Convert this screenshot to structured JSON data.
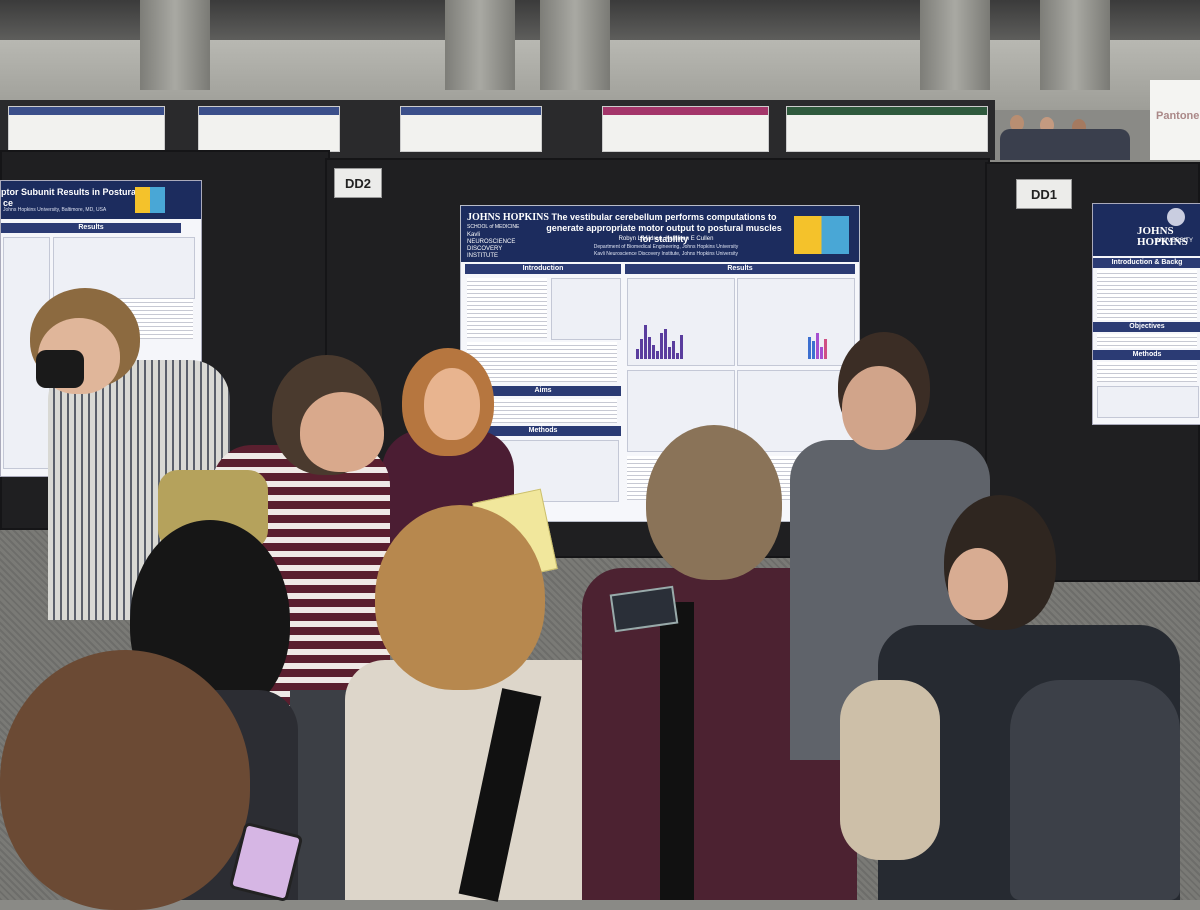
{
  "scene": {
    "board_labels": {
      "left": "DD2",
      "right": "DD1"
    },
    "background_banner_fragment": "Pantone"
  },
  "main_poster": {
    "institution": "JOHNS HOPKINS",
    "institution_sub": "SCHOOL of MEDICINE",
    "title": "The vestibular cerebellum performs computations to generate appropriate motor output to postural muscles for stability",
    "authors": "Robyn L Mildren, Kathleen E Cullen",
    "department": "Department of Biomedical Engineering, Johns Hopkins University",
    "institute": "Kavli Neuroscience Discovery Institute, Johns Hopkins University",
    "kavli_logo": "Kavli NEUROSCIENCE DISCOVERY INSTITUTE",
    "sections": {
      "introduction": "Introduction",
      "results": "Results",
      "aims": "Aims",
      "methods": "Methods"
    }
  },
  "left_poster": {
    "title": "ptor Subunit Results in Postural",
    "title_line2": "ce",
    "affiliation": "Johns Hopkins University, Baltimore, MD, USA",
    "section": "Results"
  },
  "right_poster": {
    "institution": "JOHNS HOPKINS",
    "institution_sub": "UNIVERSITY",
    "sections": [
      "Introduction & Backg",
      "Objectives",
      "Methods"
    ]
  },
  "colors": {
    "poster_header": "#1c2c5e",
    "section_header": "#2b3b74",
    "board": "#1f1f21"
  }
}
